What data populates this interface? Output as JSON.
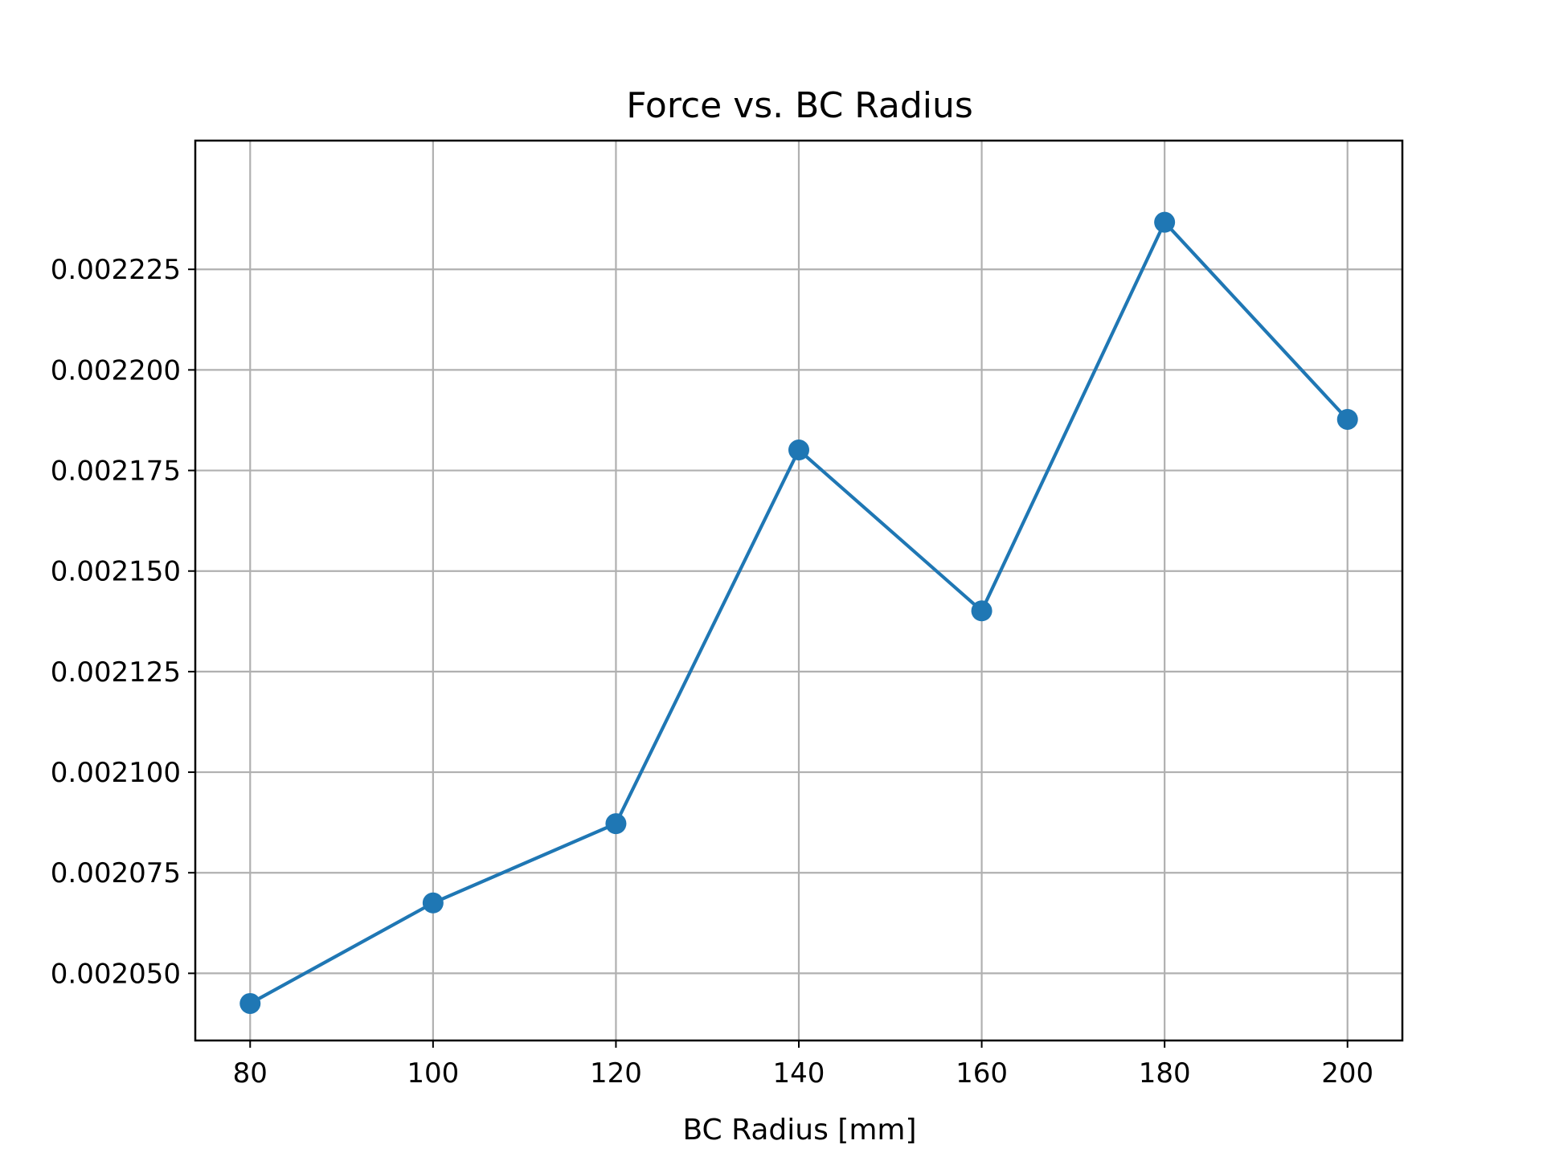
{
  "chart_data": {
    "type": "line",
    "title": "Force vs. BC Radius",
    "xlabel": "BC Radius [mm]",
    "ylabel": "",
    "x": [
      80,
      100,
      120,
      140,
      160,
      180,
      200
    ],
    "series": [
      {
        "values": [
          0.0020425,
          0.0020675,
          0.0020872,
          0.0021801,
          0.0021401,
          0.0022367,
          0.0021877
        ]
      }
    ],
    "xlim": [
      74,
      206
    ],
    "ylim": [
      0.0020333,
      0.002257
    ],
    "xticks": [
      80,
      100,
      120,
      140,
      160,
      180,
      200
    ],
    "xtick_labels": [
      "80",
      "100",
      "120",
      "140",
      "160",
      "180",
      "200"
    ],
    "yticks": [
      0.00205,
      0.002075,
      0.0021,
      0.002125,
      0.00215,
      0.002175,
      0.0022,
      0.002225
    ],
    "ytick_labels": [
      "0.002050",
      "0.002075",
      "0.002100",
      "0.002125",
      "0.002150",
      "0.002175",
      "0.002200",
      "0.002225"
    ],
    "grid": true,
    "marker": "circle",
    "colors": {
      "line": "#1f77b4",
      "grid": "#b0b0b0",
      "axes": "#000000"
    }
  }
}
